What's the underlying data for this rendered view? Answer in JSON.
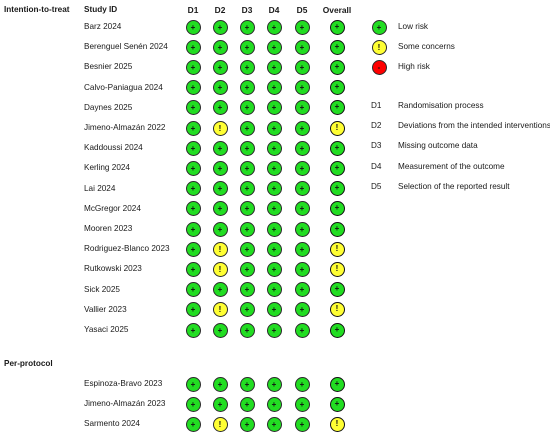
{
  "headers": {
    "section_col": "Intention-to-treat",
    "study_col": "Study ID",
    "domains": [
      "D1",
      "D2",
      "D3",
      "D4",
      "D5"
    ],
    "overall": "Overall"
  },
  "sections": [
    {
      "title": "Intention-to-treat",
      "studies": [
        {
          "name": "Barz 2024",
          "judgements": [
            "low",
            "low",
            "low",
            "low",
            "low"
          ],
          "overall": "low"
        },
        {
          "name": "Berenguel Senén 2024",
          "judgements": [
            "low",
            "low",
            "low",
            "low",
            "low"
          ],
          "overall": "low"
        },
        {
          "name": "Besnier 2025",
          "judgements": [
            "low",
            "low",
            "low",
            "low",
            "low"
          ],
          "overall": "low"
        },
        {
          "name": "Calvo-Paniagua 2024",
          "judgements": [
            "low",
            "low",
            "low",
            "low",
            "low"
          ],
          "overall": "low"
        },
        {
          "name": "Daynes 2025",
          "judgements": [
            "low",
            "low",
            "low",
            "low",
            "low"
          ],
          "overall": "low"
        },
        {
          "name": "Jimeno-Almazán 2022",
          "judgements": [
            "low",
            "some",
            "low",
            "low",
            "low"
          ],
          "overall": "some"
        },
        {
          "name": "Kaddoussi 2024",
          "judgements": [
            "low",
            "low",
            "low",
            "low",
            "low"
          ],
          "overall": "low"
        },
        {
          "name": "Kerling 2024",
          "judgements": [
            "low",
            "low",
            "low",
            "low",
            "low"
          ],
          "overall": "low"
        },
        {
          "name": "Lai 2024",
          "judgements": [
            "low",
            "low",
            "low",
            "low",
            "low"
          ],
          "overall": "low"
        },
        {
          "name": "McGregor 2024",
          "judgements": [
            "low",
            "low",
            "low",
            "low",
            "low"
          ],
          "overall": "low"
        },
        {
          "name": "Mooren 2023",
          "judgements": [
            "low",
            "low",
            "low",
            "low",
            "low"
          ],
          "overall": "low"
        },
        {
          "name": "Rodriguez-Blanco 2023",
          "judgements": [
            "low",
            "some",
            "low",
            "low",
            "low"
          ],
          "overall": "some"
        },
        {
          "name": "Rutkowski 2023",
          "judgements": [
            "low",
            "some",
            "low",
            "low",
            "low"
          ],
          "overall": "some"
        },
        {
          "name": "Sick 2025",
          "judgements": [
            "low",
            "low",
            "low",
            "low",
            "low"
          ],
          "overall": "low"
        },
        {
          "name": "Vallier 2023",
          "judgements": [
            "low",
            "some",
            "low",
            "low",
            "low"
          ],
          "overall": "some"
        },
        {
          "name": "Yasaci 2025",
          "judgements": [
            "low",
            "low",
            "low",
            "low",
            "low"
          ],
          "overall": "low"
        }
      ]
    },
    {
      "title": "Per-protocol",
      "studies": [
        {
          "name": "Espinoza-Bravo 2023",
          "judgements": [
            "low",
            "low",
            "low",
            "low",
            "low"
          ],
          "overall": "low"
        },
        {
          "name": "Jimeno-Almazán 2023",
          "judgements": [
            "low",
            "low",
            "low",
            "low",
            "low"
          ],
          "overall": "low"
        },
        {
          "name": "Sarmento 2024",
          "judgements": [
            "low",
            "some",
            "low",
            "low",
            "low"
          ],
          "overall": "some"
        }
      ]
    }
  ],
  "symbols": {
    "low": "+",
    "some": "!",
    "high": "-"
  },
  "legend": {
    "judgements": [
      {
        "key": "low",
        "symbol": "+",
        "label": "Low risk",
        "color": "#22dd22"
      },
      {
        "key": "some",
        "symbol": "!",
        "label": "Some concerns",
        "color": "#ffff33"
      },
      {
        "key": "high",
        "symbol": "-",
        "label": "High risk",
        "color": "#ff0000"
      }
    ],
    "domains": [
      {
        "code": "D1",
        "label": "Randomisation process"
      },
      {
        "code": "D2",
        "label": "Deviations from the intended interventions"
      },
      {
        "code": "D3",
        "label": "Missing outcome data"
      },
      {
        "code": "D4",
        "label": "Measurement of the outcome"
      },
      {
        "code": "D5",
        "label": "Selection of the reported result"
      }
    ]
  }
}
